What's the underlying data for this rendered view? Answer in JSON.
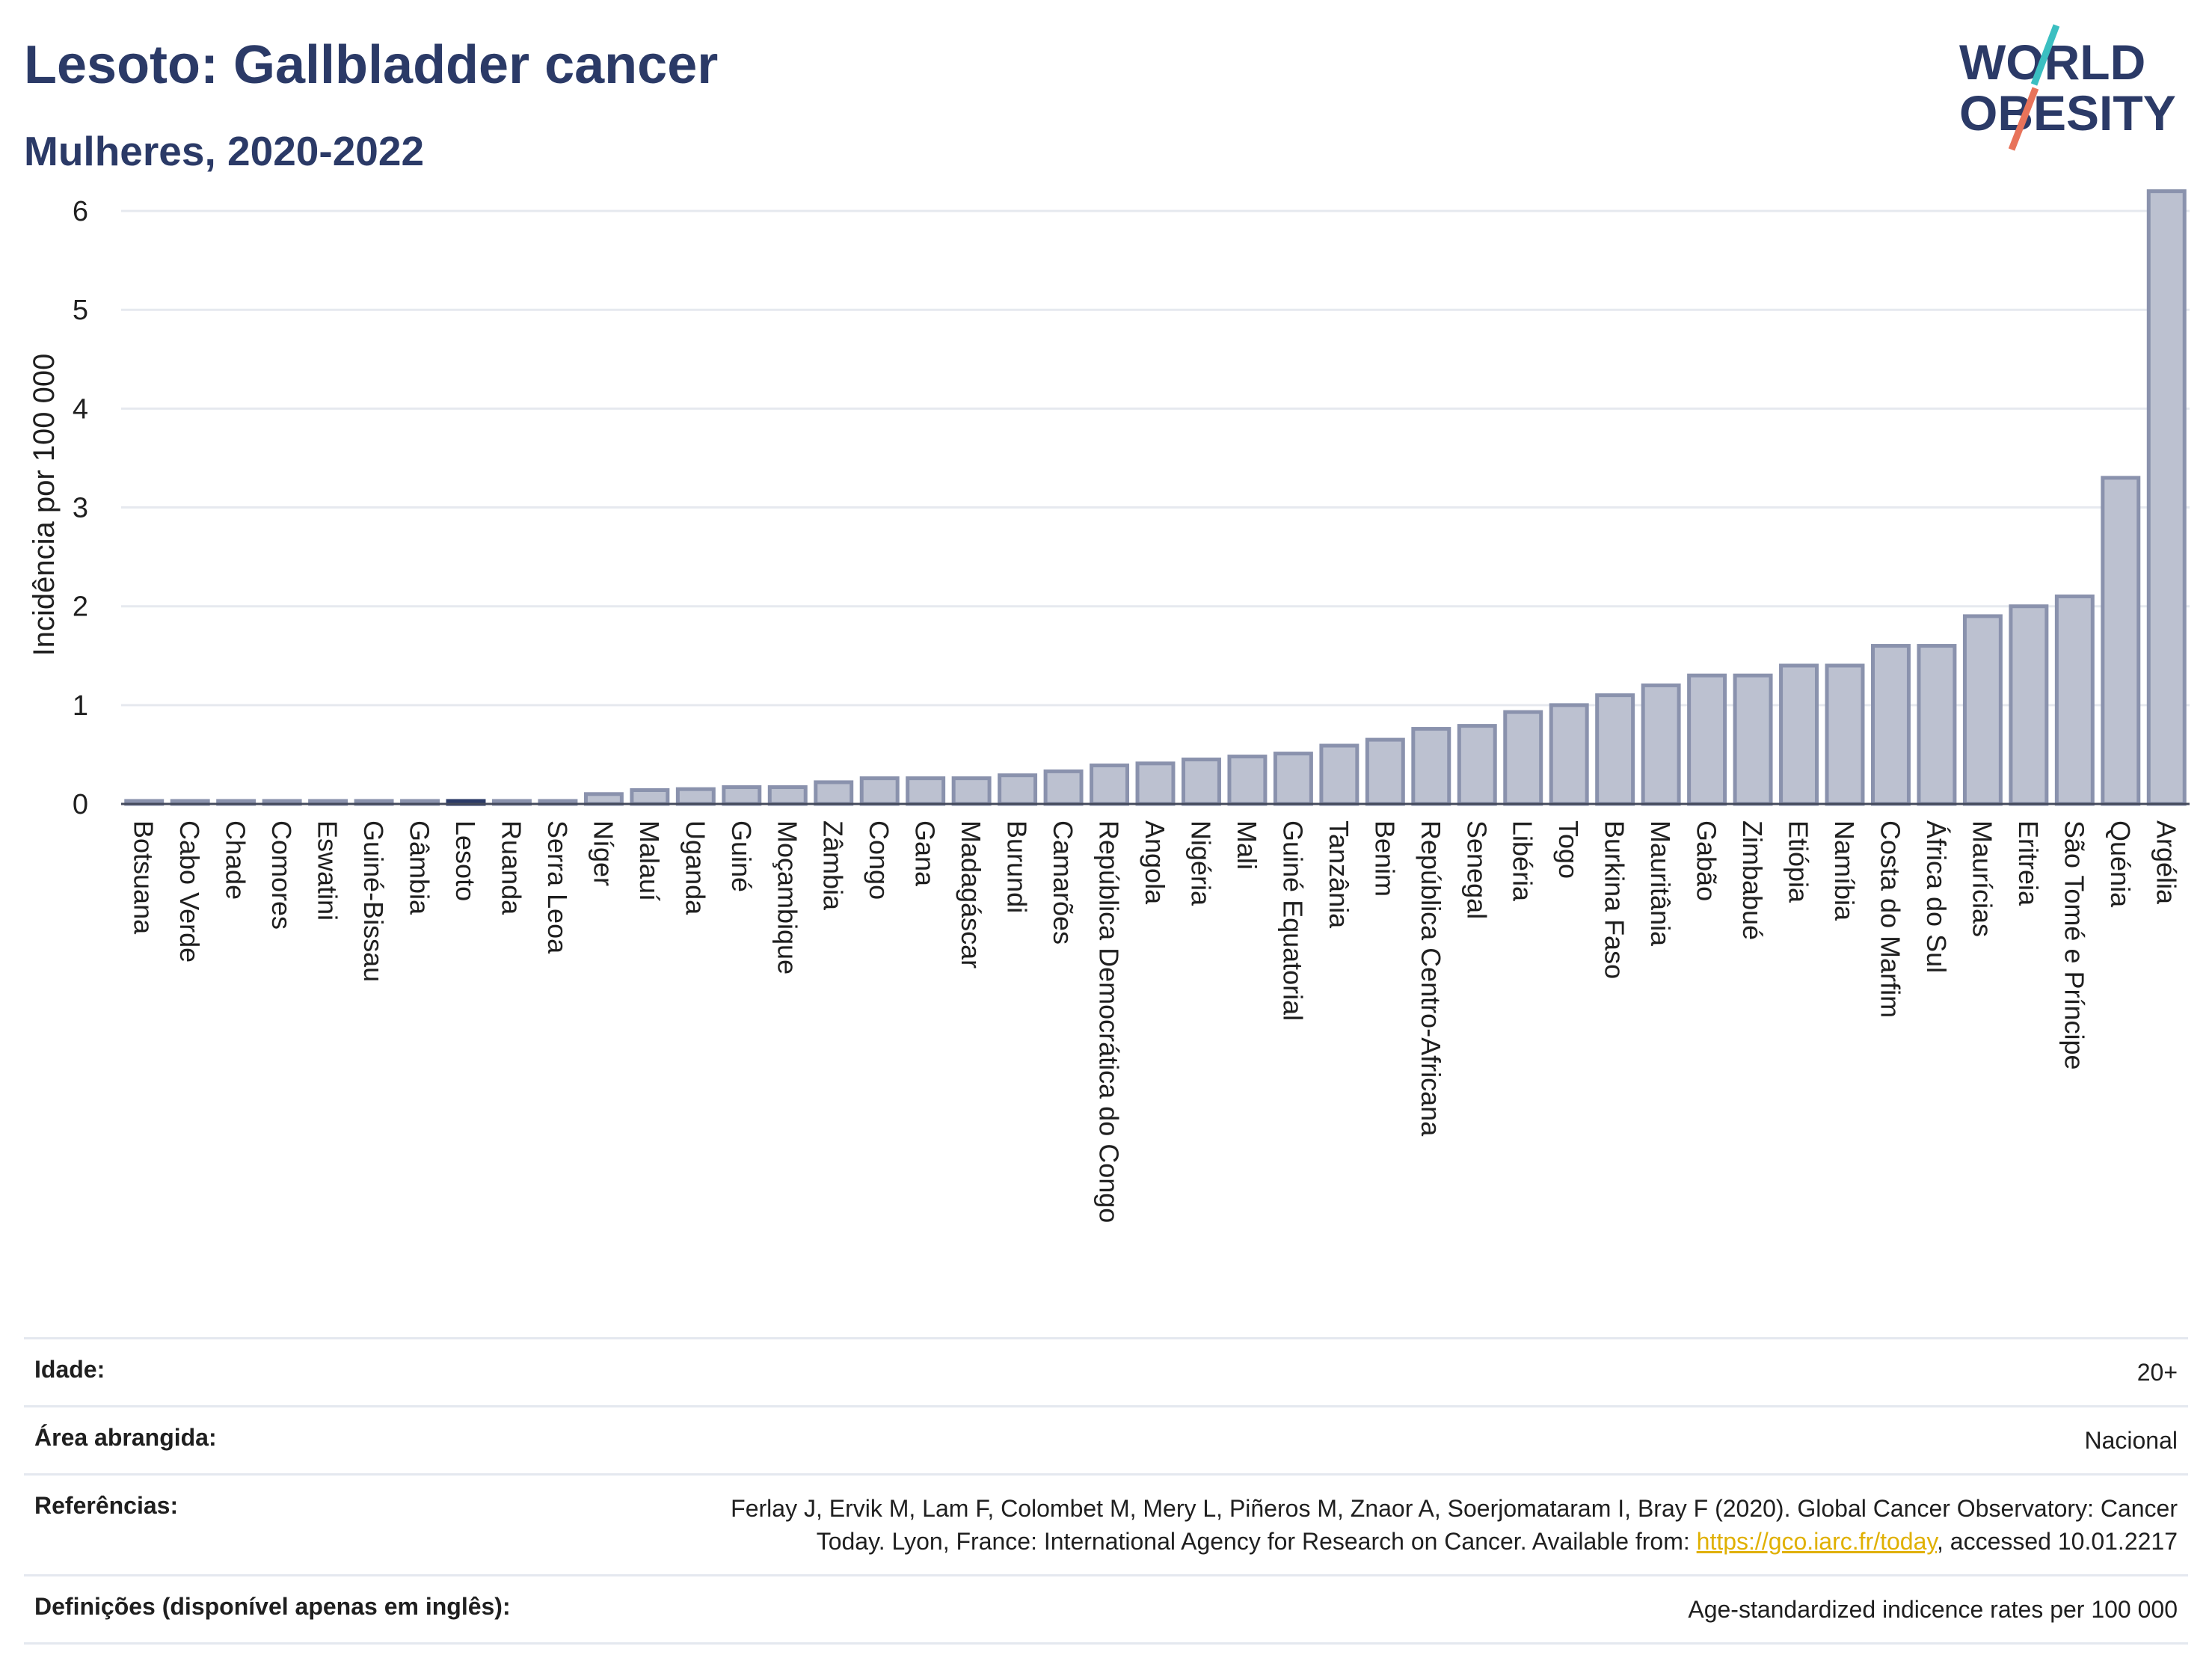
{
  "header": {
    "title": "Lesoto: Gallbladder cancer",
    "subtitle": "Mulheres, 2020-2022"
  },
  "logo": {
    "line1": "WORLD",
    "line2": "OBESITY"
  },
  "colors": {
    "bar_fill": "#bcc1d0",
    "bar_stroke": "#8a92ad",
    "highlight": "#2b3a67",
    "accent_teal": "#3bbfc1",
    "accent_coral": "#e8735a"
  },
  "chart_data": {
    "type": "bar",
    "title": "Lesoto: Gallbladder cancer",
    "subtitle": "Mulheres, 2020-2022",
    "xlabel": "",
    "ylabel": "Incidência por 100 000",
    "ylim": [
      0,
      6.5
    ],
    "yticks": [
      0,
      1,
      2,
      3,
      4,
      5,
      6
    ],
    "grid": true,
    "highlight_category": "Lesoto",
    "categories": [
      "Botsuana",
      "Cabo Verde",
      "Chade",
      "Comores",
      "Eswatini",
      "Guiné-Bissau",
      "Gâmbia",
      "Lesoto",
      "Ruanda",
      "Serra Leoa",
      "Níger",
      "Malauí",
      "Uganda",
      "Guiné",
      "Moçambique",
      "Zâmbia",
      "Congo",
      "Gana",
      "Madagáscar",
      "Burundi",
      "Camarões",
      "República Democrática do Congo",
      "Angola",
      "Nigéria",
      "Mali",
      "Guiné Equatorial",
      "Tanzânia",
      "Benim",
      "República Centro-Africana",
      "Senegal",
      "Libéria",
      "Togo",
      "Burkina Faso",
      "Mauritânia",
      "Gabão",
      "Zimbabué",
      "Etiópia",
      "Namíbia",
      "Costa do Marfim",
      "África do Sul",
      "Maurícias",
      "Eritreia",
      "São Tomé e Príncipe",
      "Quénia",
      "Argélia"
    ],
    "values": [
      0.02,
      0.02,
      0.02,
      0.02,
      0.02,
      0.02,
      0.02,
      0.03,
      0.02,
      0.02,
      0.1,
      0.14,
      0.15,
      0.17,
      0.17,
      0.22,
      0.26,
      0.26,
      0.26,
      0.29,
      0.33,
      0.39,
      0.41,
      0.45,
      0.48,
      0.51,
      0.59,
      0.65,
      0.76,
      0.79,
      0.93,
      1.0,
      1.1,
      1.2,
      1.3,
      1.3,
      1.4,
      1.4,
      1.6,
      1.6,
      1.9,
      2.0,
      2.1,
      3.3,
      6.2
    ]
  },
  "info": {
    "age_label": "Idade:",
    "age_value": "20+",
    "area_label": "Área abrangida:",
    "area_value": "Nacional",
    "refs_label": "Referências:",
    "refs_line1": "Ferlay J, Ervik M, Lam F, Colombet M, Mery L, Piñeros M, Znaor A, Soerjomataram I, Bray F (2020). Global Cancer Observatory: Cancer",
    "refs_line2_pre": "Today. Lyon, France: International Agency for Research on Cancer. Available from: ",
    "refs_link": "https://gco.iarc.fr/today",
    "refs_line2_post": ", accessed 10.01.2217",
    "defs_label": "Definições (disponível apenas em inglês):",
    "defs_value": "Age-standardized indicence rates per 100 000"
  }
}
